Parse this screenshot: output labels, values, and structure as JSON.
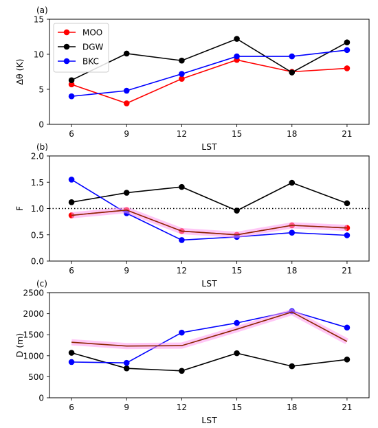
{
  "chart_data": [
    {
      "type": "line",
      "panel_label": "(a)",
      "x": [
        6,
        9,
        12,
        15,
        18,
        21
      ],
      "xticks": [
        "6",
        "9",
        "12",
        "15",
        "18",
        "21"
      ],
      "xlabel": "LST",
      "ylabel": "Δθ (K)",
      "ylim": [
        0,
        15
      ],
      "yticks": [
        0,
        5,
        10,
        15
      ],
      "legend": {
        "placement": "top-left"
      },
      "series": [
        {
          "name": "MOO",
          "color": "#ff0000",
          "values": [
            5.7,
            3.0,
            6.5,
            9.2,
            7.5,
            8.0
          ]
        },
        {
          "name": "DGW",
          "color": "#000000",
          "values": [
            6.3,
            10.1,
            9.1,
            12.2,
            7.4,
            11.7
          ]
        },
        {
          "name": "BKC",
          "color": "#0000ff",
          "values": [
            4.0,
            4.8,
            7.2,
            9.7,
            9.7,
            10.6
          ]
        }
      ]
    },
    {
      "type": "line",
      "panel_label": "(b)",
      "x": [
        6,
        9,
        12,
        15,
        18,
        21
      ],
      "xticks": [
        "6",
        "9",
        "12",
        "15",
        "18",
        "21"
      ],
      "xlabel": "LST",
      "ylabel": "F",
      "ylim": [
        0,
        2
      ],
      "yticks": [
        "0.0",
        "0.5",
        "1.0",
        "1.5",
        "2.0"
      ],
      "reference_line": 1.0,
      "series": [
        {
          "color": "#ff0000",
          "values": [
            0.87,
            0.97,
            0.57,
            0.5,
            0.68,
            0.63
          ]
        },
        {
          "color": "#000000",
          "values": [
            1.12,
            1.3,
            1.41,
            0.96,
            1.49,
            1.1
          ]
        },
        {
          "color": "#0000ff",
          "values": [
            1.55,
            0.91,
            0.4,
            0.46,
            0.54,
            0.49
          ]
        },
        {
          "color": "#8b2500",
          "values": [
            0.87,
            0.97,
            0.57,
            0.5,
            0.68,
            0.63
          ],
          "shade_color": "#ff99ee"
        }
      ]
    },
    {
      "type": "line",
      "panel_label": "(c)",
      "x": [
        6,
        9,
        12,
        15,
        18,
        21
      ],
      "xticks": [
        "6",
        "9",
        "12",
        "15",
        "18",
        "21"
      ],
      "xlabel": "LST",
      "ylabel": "D (m)",
      "ylim": [
        0,
        2500
      ],
      "yticks": [
        0,
        500,
        1000,
        1500,
        2000,
        2500
      ],
      "series": [
        {
          "color": "#000000",
          "values": [
            1070,
            700,
            640,
            1060,
            750,
            910
          ]
        },
        {
          "color": "#0000ff",
          "values": [
            850,
            830,
            1550,
            1780,
            2060,
            1670
          ]
        },
        {
          "color": "#8b2500",
          "values": [
            1320,
            1230,
            1240,
            1630,
            2040,
            1340
          ],
          "shade_color": "#ff99ee"
        }
      ]
    }
  ]
}
